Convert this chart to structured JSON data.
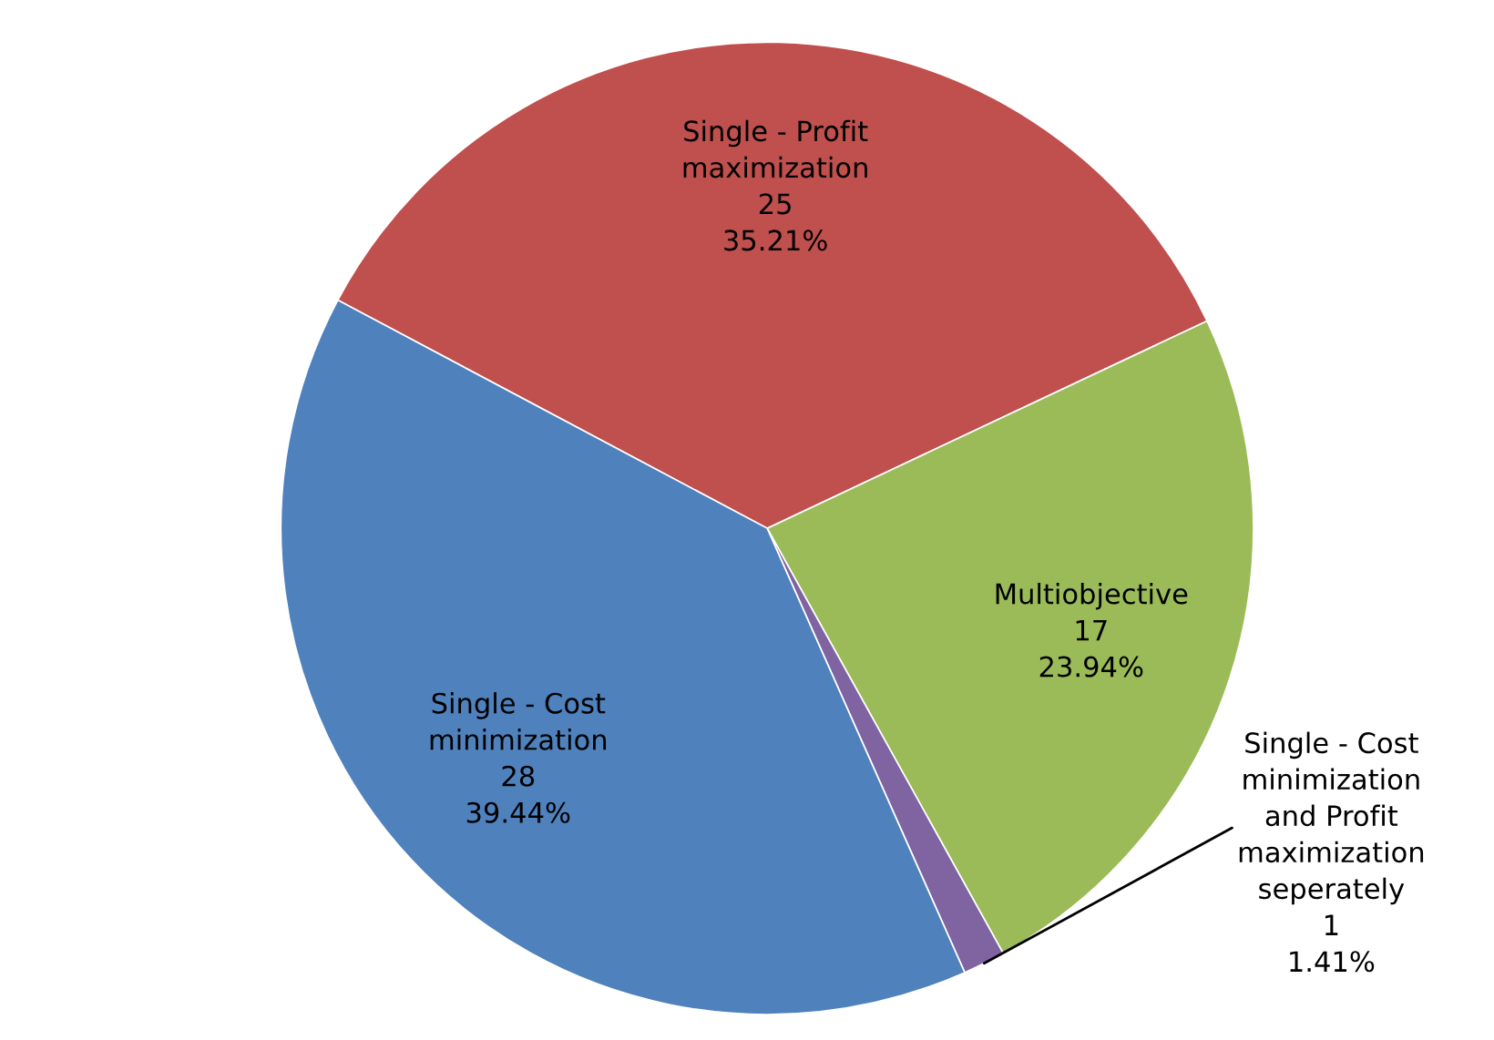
{
  "chart_data": {
    "type": "pie",
    "categories": [
      "Single - Profit\nmaximization",
      "Multiobjective",
      "Single - Cost\nminimization\nand Profit\nmaximization\nseperately",
      "Single - Cost\nminimization"
    ],
    "values": [
      25,
      17,
      1,
      28
    ],
    "value_labels": [
      "25\n35.21%",
      "17\n23.94%",
      "1\n1.41%",
      "28\n39.44%"
    ],
    "colors": [
      "#c0504d",
      "#9bbb59",
      "#8064a2",
      "#4f81bd"
    ],
    "legend": false
  }
}
